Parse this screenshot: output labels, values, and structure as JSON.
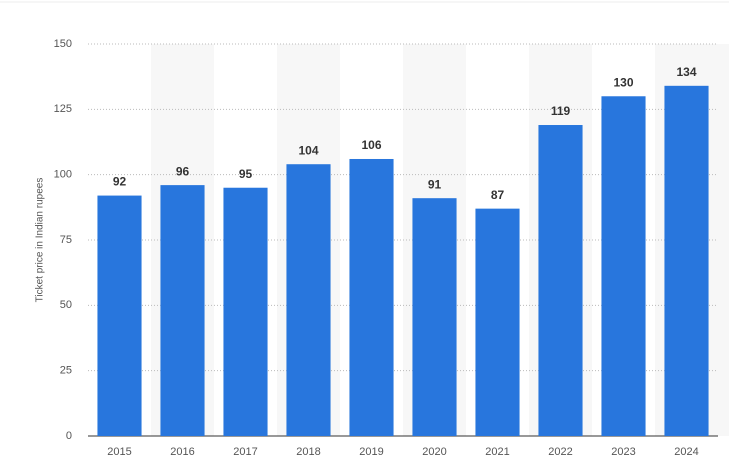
{
  "chart_data": {
    "type": "bar",
    "y_label": "Ticket price in Indian rupees",
    "categories": [
      "2015",
      "2016",
      "2017",
      "2018",
      "2019",
      "2020",
      "2021",
      "2022",
      "2023",
      "2024"
    ],
    "values": [
      92,
      96,
      95,
      104,
      106,
      91,
      87,
      119,
      130,
      134
    ],
    "color": "#2876dd",
    "ylim": [
      0,
      150
    ],
    "yticks": [
      0,
      25,
      50,
      75,
      100,
      125,
      150
    ],
    "grid": true
  }
}
